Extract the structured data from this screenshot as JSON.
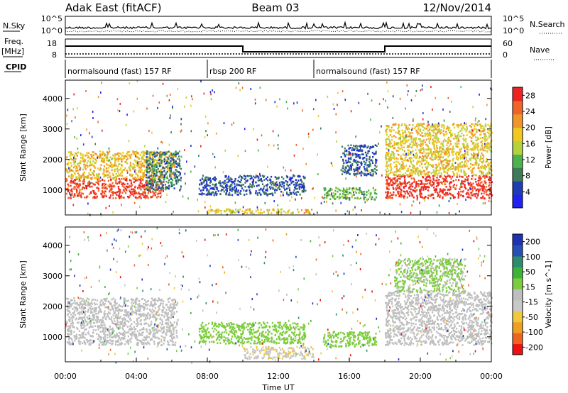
{
  "header": {
    "radar": "Adak East (fitACF)",
    "beam": "Beam 03",
    "date": "12/Nov/2014"
  },
  "panels": {
    "nsky_label": "N.Sky",
    "nsearch_label": "N.Search",
    "freq_label": "Freq.",
    "freq_unit": "[MHz]",
    "nave_label": "Nave",
    "cpid_label": "CPID",
    "nsky_ticks": [
      "10^5",
      "10^0"
    ],
    "nsearch_ticks": [
      "10^5",
      "10^0"
    ],
    "freq_ticks": [
      "18",
      "8"
    ],
    "nave_ticks": [
      "60",
      "0"
    ]
  },
  "cpid_segments": [
    {
      "label": "normalsound (fast) 157 RF",
      "start": 0,
      "end": 8
    },
    {
      "label": "rbsp 200 RF",
      "start": 8,
      "end": 14
    },
    {
      "label": "normalsound (fast) 157 RF",
      "start": 14,
      "end": 24
    }
  ],
  "colors": {
    "power": [
      "#2222ee",
      "#1e3cb4",
      "#3d7a5a",
      "#4cb34c",
      "#b4d23c",
      "#f0c81e",
      "#f09628",
      "#f06428",
      "#ee2222"
    ],
    "velocity": [
      "#ee1111",
      "#f06420",
      "#f0a020",
      "#f0c83c",
      "#c8c8c8",
      "#bebebe",
      "#7ccd3c",
      "#3cb43c",
      "#2d8c6e",
      "#2850b4",
      "#1e32b4"
    ]
  },
  "chart_data": [
    {
      "type": "heatmap",
      "title": "Power",
      "xlabel": "Time UT",
      "ylabel": "Slant Range [km]",
      "xlim": [
        0,
        24
      ],
      "ylim": [
        180,
        4600
      ],
      "xticks": [
        "00:00",
        "04:00",
        "08:00",
        "12:00",
        "16:00",
        "20:00",
        "00:00"
      ],
      "yticks": [
        1000,
        2000,
        3000,
        4000
      ],
      "colorbar": {
        "label": "Power [dB]",
        "ticks": [
          4,
          8,
          12,
          16,
          20,
          24,
          28
        ],
        "range": [
          0,
          30
        ]
      },
      "regions": [
        {
          "t0": 0.0,
          "t1": 5.5,
          "r0": 750,
          "r1": 1400,
          "value": 27
        },
        {
          "t0": 0.0,
          "t1": 6.2,
          "r0": 1400,
          "r1": 2300,
          "value": 19
        },
        {
          "t0": 4.5,
          "t1": 6.5,
          "r0": 1000,
          "r1": 2300,
          "value": 8
        },
        {
          "t0": 7.5,
          "t1": 13.5,
          "r0": 850,
          "r1": 1500,
          "value": 6
        },
        {
          "t0": 8.0,
          "t1": 14.0,
          "r0": 250,
          "r1": 400,
          "value": 18
        },
        {
          "t0": 14.5,
          "t1": 17.5,
          "r0": 700,
          "r1": 1100,
          "value": 12
        },
        {
          "t0": 15.5,
          "t1": 17.5,
          "r0": 1500,
          "r1": 2500,
          "value": 6
        },
        {
          "t0": 18.0,
          "t1": 24.0,
          "r0": 750,
          "r1": 1500,
          "value": 28
        },
        {
          "t0": 18.0,
          "t1": 24.0,
          "r0": 1500,
          "r1": 3200,
          "value": 18
        }
      ]
    },
    {
      "type": "heatmap",
      "title": "Velocity",
      "xlabel": "Time UT",
      "ylabel": "Slant Range [km]",
      "xlim": [
        0,
        24
      ],
      "ylim": [
        180,
        4600
      ],
      "xticks": [
        "00:00",
        "04:00",
        "08:00",
        "12:00",
        "16:00",
        "20:00",
        "00:00"
      ],
      "yticks": [
        1000,
        2000,
        3000,
        4000
      ],
      "colorbar": {
        "label": "Velocity [m s^-1]",
        "ticks": [
          200,
          100,
          50,
          15,
          -15,
          -50,
          -100,
          -200
        ],
        "range": [
          -250,
          250
        ]
      },
      "regions": [
        {
          "t0": 0.0,
          "t1": 6.3,
          "r0": 750,
          "r1": 2300,
          "value": 0
        },
        {
          "t0": 7.5,
          "t1": 13.5,
          "r0": 800,
          "r1": 1500,
          "value": 40
        },
        {
          "t0": 10.0,
          "t1": 14.0,
          "r0": 300,
          "r1": 700,
          "value": -60
        },
        {
          "t0": 14.5,
          "t1": 17.5,
          "r0": 700,
          "r1": 1200,
          "value": 40
        },
        {
          "t0": 18.0,
          "t1": 24.0,
          "r0": 750,
          "r1": 2500,
          "value": 0
        },
        {
          "t0": 18.5,
          "t1": 22.5,
          "r0": 2500,
          "r1": 3600,
          "value": 30
        }
      ]
    }
  ]
}
